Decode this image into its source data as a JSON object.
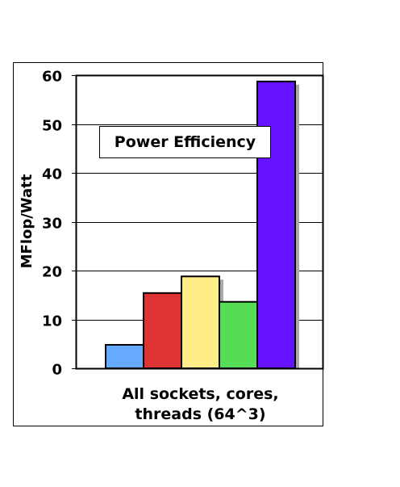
{
  "chart_data": {
    "type": "bar",
    "title": "Power Efficiency",
    "ylabel": "MFlop/Watt",
    "xlabel": "",
    "categories": [
      "All sockets, cores, threads (64^3)"
    ],
    "category_label_lines": [
      "All sockets, cores,",
      "threads (64^3)"
    ],
    "ylim": [
      0,
      60
    ],
    "yticks": [
      0,
      10,
      20,
      30,
      40,
      50,
      60
    ],
    "grid": true,
    "legend": "none",
    "series": [
      {
        "values": [
          4.8
        ],
        "color": "#66aaff"
      },
      {
        "values": [
          15.4
        ],
        "color": "#dd3333"
      },
      {
        "values": [
          18.8
        ],
        "color": "#ffee88"
      },
      {
        "values": [
          13.6
        ],
        "color": "#55dd55"
      },
      {
        "values": [
          58.7
        ],
        "color": "#6611ff"
      }
    ]
  }
}
